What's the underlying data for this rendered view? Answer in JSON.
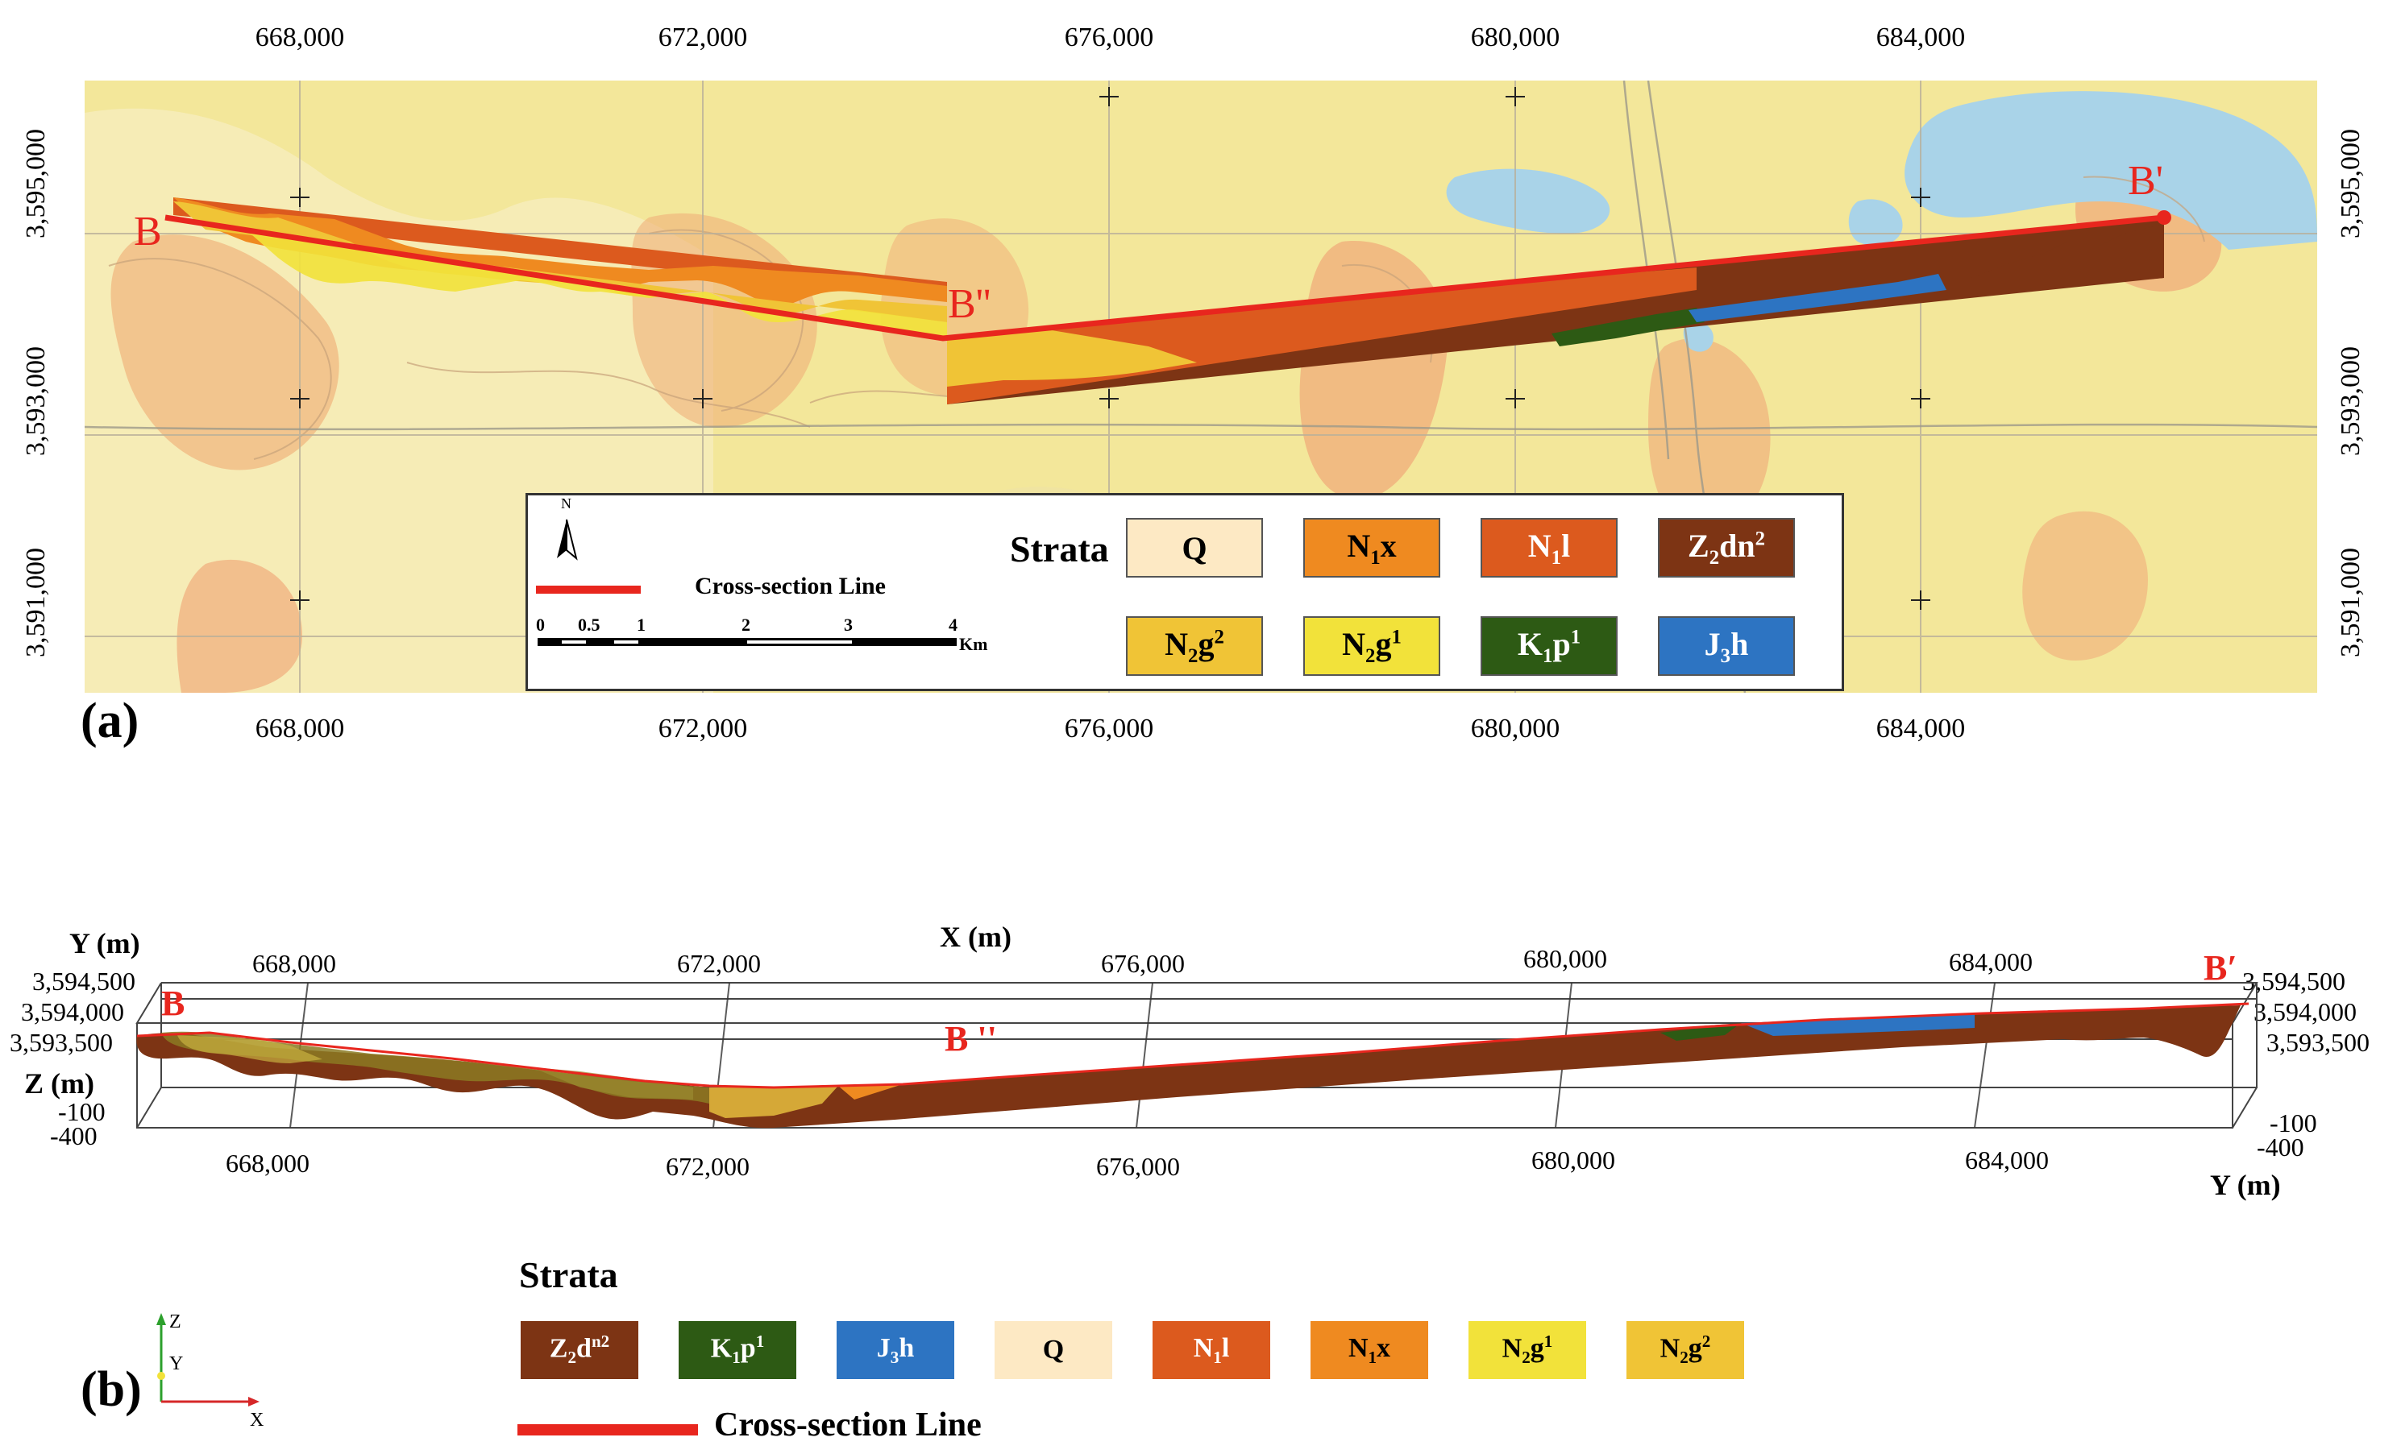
{
  "panel_a": {
    "label": "(a)",
    "x_ticks": [
      "668,000",
      "672,000",
      "676,000",
      "680,000",
      "684,000"
    ],
    "y_ticks": [
      "3,595,000",
      "3,593,000",
      "3,591,000"
    ],
    "points": {
      "b": "B",
      "b_prime": "B'",
      "b_double": "B''"
    },
    "legend": {
      "north": "N",
      "line_label": "Cross-section Line",
      "scale_labels": [
        "0",
        "0.5",
        "1",
        "2",
        "3",
        "4"
      ],
      "scale_unit": "Km",
      "strata_title": "Strata",
      "swatches": [
        {
          "base": "Q",
          "sub": "",
          "rest": "",
          "sup": "",
          "color": "#fde9c4"
        },
        {
          "base": "N",
          "sub": "1",
          "rest": "x",
          "sup": "",
          "color": "#ef8a20"
        },
        {
          "base": "N",
          "sub": "1",
          "rest": "l",
          "sup": "",
          "color": "#dc5a1e"
        },
        {
          "base": "Z",
          "sub": "2",
          "rest": "dn",
          "sup": "2",
          "color": "#7d3414"
        },
        {
          "base": "N",
          "sub": "2",
          "rest": "g",
          "sup": "2",
          "color": "#f0c436"
        },
        {
          "base": "N",
          "sub": "2",
          "rest": "g",
          "sup": "1",
          "color": "#f2e23a"
        },
        {
          "base": "K",
          "sub": "1",
          "rest": "p",
          "sup": "1",
          "color": "#2d5a14"
        },
        {
          "base": "J",
          "sub": "3",
          "rest": "h",
          "sup": "",
          "color": "#2d74c2"
        }
      ]
    }
  },
  "panel_b": {
    "label": "(b)",
    "y_axis": "Y (m)",
    "x_axis": "X (m)",
    "z_axis": "Z (m)",
    "y_axis_right": "Y (m)",
    "x_ticks_top": [
      "668,000",
      "672,000",
      "676,000",
      "680,000",
      "684,000"
    ],
    "x_ticks_bottom": [
      "668,000",
      "672,000",
      "676,000",
      "680,000",
      "684,000"
    ],
    "y_ticks": [
      "3,594,500",
      "3,594,000",
      "3,593,500"
    ],
    "z_ticks": [
      "-100",
      "-400"
    ],
    "points": {
      "b": "B",
      "b_prime": "B′",
      "b_double": "B ''"
    },
    "triad": {
      "z": "Z",
      "y": "Y",
      "x": "X"
    },
    "legend": {
      "strata_title": "Strata",
      "line_label": "Cross-section Line",
      "swatches": [
        {
          "base": "Z",
          "sub": "2",
          "rest": "d",
          "sup": "n2",
          "color": "#7d3414",
          "text": "#ffffff"
        },
        {
          "base": "K",
          "sub": "1",
          "rest": "p",
          "sup": "1",
          "color": "#2d5a14",
          "text": "#ffffff"
        },
        {
          "base": "J",
          "sub": "3",
          "rest": "h",
          "sup": "",
          "color": "#2d74c2",
          "text": "#ffffff"
        },
        {
          "base": "Q",
          "sub": "",
          "rest": "",
          "sup": "",
          "color": "#fde9c4",
          "text": "#000000"
        },
        {
          "base": "N",
          "sub": "1",
          "rest": "l",
          "sup": "",
          "color": "#dc5a1e",
          "text": "#ffffff"
        },
        {
          "base": "N",
          "sub": "1",
          "rest": "x",
          "sup": "",
          "color": "#ef8a20",
          "text": "#000000"
        },
        {
          "base": "N",
          "sub": "2",
          "rest": "g",
          "sup": "1",
          "color": "#f2e23a",
          "text": "#000000"
        },
        {
          "base": "N",
          "sub": "2",
          "rest": "g",
          "sup": "2",
          "color": "#f0c436",
          "text": "#000000"
        }
      ]
    }
  },
  "colors": {
    "line": "#e8261e",
    "map_base": "#f3e79a",
    "water": "#a9d3e8",
    "grid": "#b9b09a"
  }
}
